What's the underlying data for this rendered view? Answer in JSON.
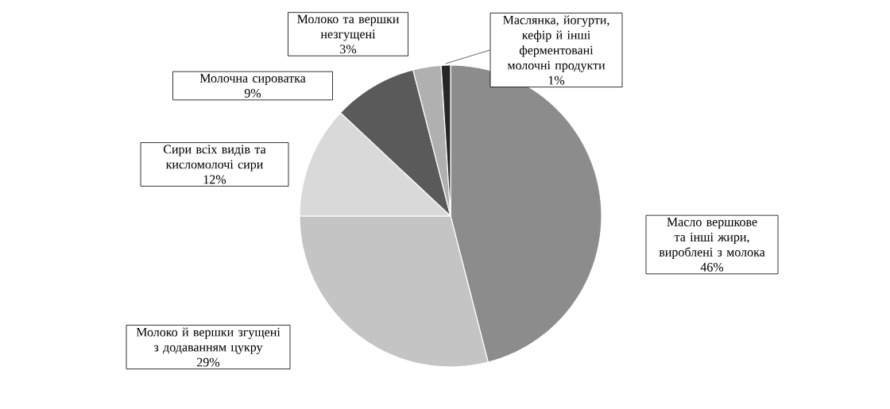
{
  "chart_data": {
    "type": "pie",
    "categories": [
      "Масло вершкове та інші жири, вироблені з молока",
      "Молоко й вершки згущені з додаванням цукру",
      "Сири всіх видів та кисломолочі сири",
      "Молочна сироватка",
      "Молоко та вершки незгущені",
      "Маслянка, йогурти, кефір й інші ферментовані молочні продукти"
    ],
    "values": [
      46,
      29,
      12,
      9,
      3,
      1
    ],
    "value_labels": [
      "46%",
      "29%",
      "12%",
      "9%",
      "3%",
      "1%"
    ],
    "colors": [
      "#8c8c8c",
      "#c4c4c4",
      "#d9d9d9",
      "#5a5a5a",
      "#b0b0b0",
      "#262626"
    ]
  }
}
